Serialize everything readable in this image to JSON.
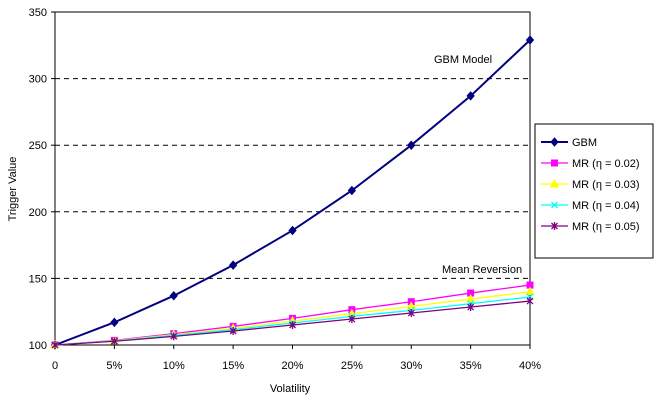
{
  "chart_data": {
    "type": "line",
    "title": "",
    "xlabel": "Volatility",
    "ylabel": "Trigger Value",
    "categories": [
      "0",
      "5%",
      "10%",
      "15%",
      "20%",
      "25%",
      "30%",
      "35%",
      "40%"
    ],
    "ylim": [
      100,
      350
    ],
    "yticks": [
      "100",
      "150",
      "200",
      "250",
      "300",
      "350"
    ],
    "grid": "horizontal dashed at 150, 200, 250, 300",
    "legend_position": "right",
    "annotations": [
      {
        "text": "GBM Model"
      },
      {
        "text": "Mean Reversion"
      }
    ],
    "series": [
      {
        "name": "GBM",
        "color": "#000080",
        "marker": "diamond",
        "values": [
          100,
          117,
          137,
          160,
          186,
          216,
          250,
          287,
          329
        ]
      },
      {
        "name": "MR (η = 0.02)",
        "color": "#FF00FF",
        "marker": "square",
        "values": [
          100,
          103.5,
          108.5,
          114,
          120,
          126.5,
          132.5,
          139,
          145
        ]
      },
      {
        "name": "MR (η = 0.03)",
        "color": "#FFFF00",
        "marker": "triangle",
        "values": [
          100,
          103.2,
          107.8,
          112.5,
          118,
          123.5,
          129,
          134.5,
          140
        ]
      },
      {
        "name": "MR (η = 0.04)",
        "color": "#00FFFF",
        "marker": "x",
        "values": [
          100,
          103,
          107.2,
          111.5,
          116.5,
          121.5,
          126,
          131,
          136
        ]
      },
      {
        "name": "MR (η = 0.05)",
        "color": "#800080",
        "marker": "star",
        "values": [
          100,
          102.8,
          106.5,
          110.5,
          115,
          119.5,
          124,
          128.5,
          133
        ]
      }
    ]
  }
}
